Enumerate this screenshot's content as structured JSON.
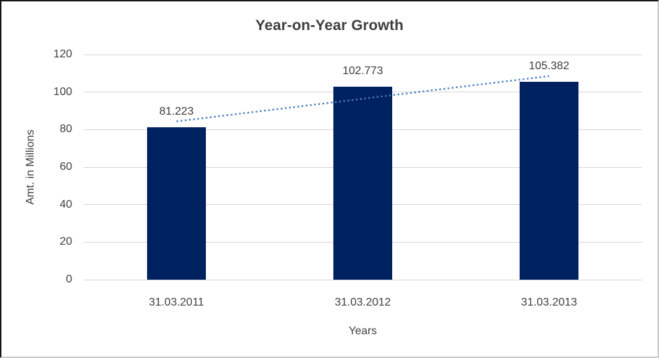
{
  "chart_data": {
    "type": "bar",
    "title": "Year-on-Year Growth",
    "xlabel": "Years",
    "ylabel": "Amt. in Millions",
    "categories": [
      "31.03.2011",
      "31.03.2012",
      "31.03.2013"
    ],
    "values": [
      81.223,
      102.773,
      105.382
    ],
    "value_labels": [
      "81.223",
      "102.773",
      "105.382"
    ],
    "yticks": [
      0,
      20,
      40,
      60,
      80,
      100,
      120
    ],
    "ylim": [
      0,
      120
    ],
    "grid": "horizontal",
    "legend": "none",
    "trendline": {
      "type": "linear",
      "style": "dotted",
      "color": "#4a7ebb"
    },
    "colors": {
      "bar": "#002160",
      "gridline": "#d6d6d6",
      "axis_text": "#404040",
      "title_text": "#3d3d3d"
    }
  }
}
